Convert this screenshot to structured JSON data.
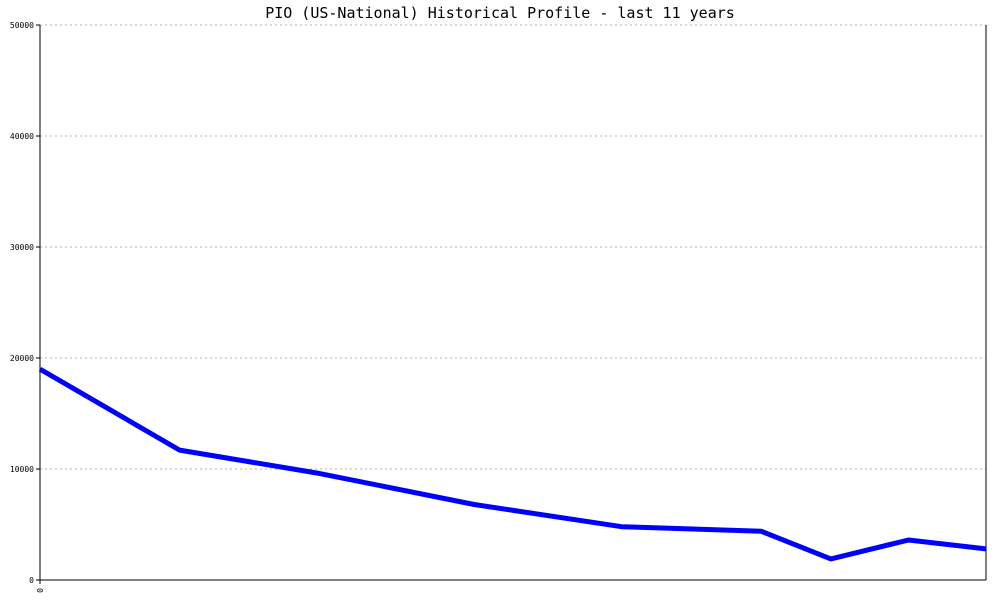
{
  "chart_data": {
    "type": "line",
    "title": "PIO (US-National) Historical Profile - last 11 years",
    "xlabel": "",
    "ylabel": "",
    "ylim": [
      0,
      50000
    ],
    "y_ticks": [
      "0",
      "10000",
      "20000",
      "30000",
      "40000",
      "50000"
    ],
    "x_tick_labels": [
      "0"
    ],
    "grid": true,
    "series": [
      {
        "color": "#0000ff",
        "x": [
          0,
          1.8,
          3.6,
          5.6,
          7.5,
          9.3,
          10.2,
          11.2,
          12.2
        ],
        "y": [
          19000,
          11700,
          9600,
          6800,
          4800,
          4400,
          1900,
          3600,
          2800
        ]
      }
    ]
  }
}
